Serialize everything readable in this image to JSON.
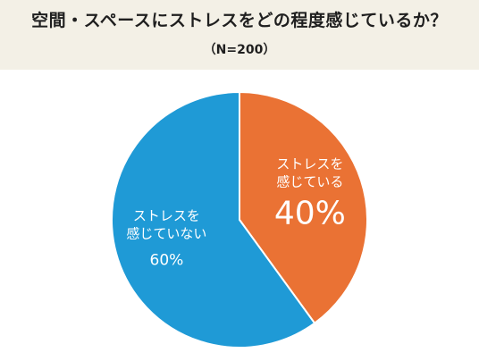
{
  "chart_data": {
    "type": "pie",
    "title": "空間・スペースにストレスをどの程度感じているか？",
    "subtitle": "（N=200）",
    "slices": [
      {
        "label_line1": "ストレスを",
        "label_line2": "感じている",
        "value": 40,
        "value_text": "40%",
        "color": "#ea7234"
      },
      {
        "label_line1": "ストレスを",
        "label_line2": "感じていない",
        "value": 60,
        "value_text": "60%",
        "color": "#1f9ad6"
      }
    ]
  },
  "colors": {
    "header_bg": "#f3f0e6",
    "slice_border": "#ffffff",
    "label_text": "#ffffff"
  }
}
